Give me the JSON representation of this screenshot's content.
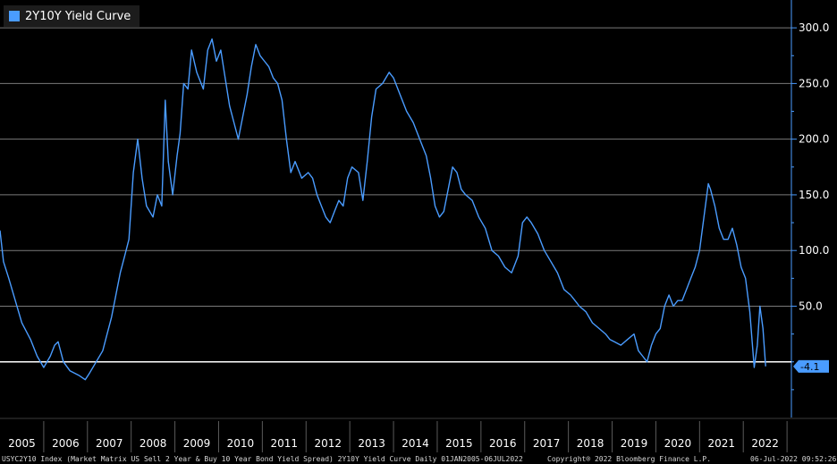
{
  "chart_data": {
    "type": "line",
    "legend": "2Y10Y Yield Curve",
    "series": [
      {
        "name": "2Y10Y Yield Curve",
        "color": "#4a9cff",
        "points": [
          [
            2005.0,
            118
          ],
          [
            2005.08,
            90
          ],
          [
            2005.2,
            75
          ],
          [
            2005.35,
            55
          ],
          [
            2005.5,
            35
          ],
          [
            2005.7,
            20
          ],
          [
            2005.85,
            5
          ],
          [
            2006.0,
            -5
          ],
          [
            2006.15,
            5
          ],
          [
            2006.25,
            15
          ],
          [
            2006.33,
            18
          ],
          [
            2006.45,
            0
          ],
          [
            2006.6,
            -8
          ],
          [
            2006.8,
            -12
          ],
          [
            2006.95,
            -16
          ],
          [
            2007.05,
            -10
          ],
          [
            2007.2,
            0
          ],
          [
            2007.35,
            10
          ],
          [
            2007.45,
            25
          ],
          [
            2007.55,
            40
          ],
          [
            2007.65,
            60
          ],
          [
            2007.75,
            80
          ],
          [
            2007.85,
            95
          ],
          [
            2007.95,
            110
          ],
          [
            2008.05,
            170
          ],
          [
            2008.15,
            200
          ],
          [
            2008.25,
            165
          ],
          [
            2008.35,
            140
          ],
          [
            2008.5,
            130
          ],
          [
            2008.6,
            150
          ],
          [
            2008.7,
            140
          ],
          [
            2008.78,
            235
          ],
          [
            2008.85,
            180
          ],
          [
            2008.95,
            150
          ],
          [
            2009.05,
            185
          ],
          [
            2009.12,
            205
          ],
          [
            2009.2,
            250
          ],
          [
            2009.3,
            245
          ],
          [
            2009.38,
            280
          ],
          [
            2009.5,
            260
          ],
          [
            2009.65,
            245
          ],
          [
            2009.75,
            280
          ],
          [
            2009.85,
            290
          ],
          [
            2009.95,
            270
          ],
          [
            2010.05,
            280
          ],
          [
            2010.15,
            255
          ],
          [
            2010.25,
            230
          ],
          [
            2010.35,
            215
          ],
          [
            2010.45,
            200
          ],
          [
            2010.55,
            220
          ],
          [
            2010.65,
            240
          ],
          [
            2010.75,
            265
          ],
          [
            2010.85,
            285
          ],
          [
            2010.95,
            275
          ],
          [
            2011.05,
            270
          ],
          [
            2011.15,
            265
          ],
          [
            2011.25,
            255
          ],
          [
            2011.35,
            250
          ],
          [
            2011.45,
            235
          ],
          [
            2011.55,
            200
          ],
          [
            2011.65,
            170
          ],
          [
            2011.75,
            180
          ],
          [
            2011.9,
            165
          ],
          [
            2012.05,
            170
          ],
          [
            2012.15,
            165
          ],
          [
            2012.25,
            150
          ],
          [
            2012.35,
            140
          ],
          [
            2012.45,
            130
          ],
          [
            2012.55,
            125
          ],
          [
            2012.65,
            135
          ],
          [
            2012.75,
            145
          ],
          [
            2012.85,
            140
          ],
          [
            2012.95,
            165
          ],
          [
            2013.05,
            175
          ],
          [
            2013.2,
            170
          ],
          [
            2013.3,
            145
          ],
          [
            2013.4,
            180
          ],
          [
            2013.5,
            220
          ],
          [
            2013.6,
            245
          ],
          [
            2013.75,
            250
          ],
          [
            2013.9,
            260
          ],
          [
            2014.0,
            255
          ],
          [
            2014.15,
            240
          ],
          [
            2014.3,
            225
          ],
          [
            2014.45,
            215
          ],
          [
            2014.6,
            200
          ],
          [
            2014.75,
            185
          ],
          [
            2014.85,
            165
          ],
          [
            2014.95,
            140
          ],
          [
            2015.05,
            130
          ],
          [
            2015.15,
            135
          ],
          [
            2015.25,
            155
          ],
          [
            2015.35,
            175
          ],
          [
            2015.45,
            170
          ],
          [
            2015.55,
            155
          ],
          [
            2015.65,
            150
          ],
          [
            2015.8,
            145
          ],
          [
            2015.95,
            130
          ],
          [
            2016.1,
            120
          ],
          [
            2016.25,
            100
          ],
          [
            2016.4,
            95
          ],
          [
            2016.55,
            85
          ],
          [
            2016.7,
            80
          ],
          [
            2016.85,
            95
          ],
          [
            2016.95,
            125
          ],
          [
            2017.05,
            130
          ],
          [
            2017.15,
            125
          ],
          [
            2017.3,
            115
          ],
          [
            2017.45,
            100
          ],
          [
            2017.6,
            90
          ],
          [
            2017.75,
            80
          ],
          [
            2017.9,
            65
          ],
          [
            2018.05,
            60
          ],
          [
            2018.15,
            55
          ],
          [
            2018.25,
            50
          ],
          [
            2018.4,
            45
          ],
          [
            2018.55,
            35
          ],
          [
            2018.7,
            30
          ],
          [
            2018.85,
            25
          ],
          [
            2018.95,
            20
          ],
          [
            2019.05,
            18
          ],
          [
            2019.2,
            15
          ],
          [
            2019.35,
            20
          ],
          [
            2019.5,
            25
          ],
          [
            2019.6,
            10
          ],
          [
            2019.7,
            5
          ],
          [
            2019.8,
            0
          ],
          [
            2019.9,
            15
          ],
          [
            2020.0,
            25
          ],
          [
            2020.1,
            30
          ],
          [
            2020.2,
            50
          ],
          [
            2020.3,
            60
          ],
          [
            2020.4,
            50
          ],
          [
            2020.5,
            55
          ],
          [
            2020.6,
            55
          ],
          [
            2020.7,
            65
          ],
          [
            2020.8,
            75
          ],
          [
            2020.9,
            85
          ],
          [
            2021.0,
            100
          ],
          [
            2021.1,
            130
          ],
          [
            2021.2,
            160
          ],
          [
            2021.25,
            155
          ],
          [
            2021.35,
            140
          ],
          [
            2021.45,
            120
          ],
          [
            2021.55,
            110
          ],
          [
            2021.65,
            110
          ],
          [
            2021.75,
            120
          ],
          [
            2021.85,
            105
          ],
          [
            2021.95,
            85
          ],
          [
            2022.05,
            75
          ],
          [
            2022.15,
            45
          ],
          [
            2022.25,
            -5
          ],
          [
            2022.32,
            15
          ],
          [
            2022.38,
            50
          ],
          [
            2022.45,
            30
          ],
          [
            2022.51,
            -4.1
          ]
        ]
      }
    ],
    "x_tick_labels": [
      "2005",
      "2006",
      "2007",
      "2008",
      "2009",
      "2010",
      "2011",
      "2012",
      "2013",
      "2014",
      "2015",
      "2016",
      "2017",
      "2018",
      "2019",
      "2020",
      "2021",
      "2022"
    ],
    "x_tick_values": [
      2005,
      2006,
      2007,
      2008,
      2009,
      2010,
      2011,
      2012,
      2013,
      2014,
      2015,
      2016,
      2017,
      2018,
      2019,
      2020,
      2021,
      2022
    ],
    "xlim": [
      2005.0,
      2023.1
    ],
    "y_ticks": [
      50,
      100,
      150,
      200,
      250,
      300
    ],
    "y_tick_labels": [
      "50.0",
      "100.0",
      "150.0",
      "200.0",
      "250.0",
      "300.0"
    ],
    "ylim": [
      -50,
      325
    ],
    "grid": true,
    "reference_line": 0,
    "last_value": -4.1,
    "last_value_label": "-4.1",
    "legend_position": "top-left",
    "colors": {
      "background": "#000000",
      "line": "#4a9cff",
      "grid": "#7a7a7a",
      "axis": "#4a9cff",
      "text": "#ffffff"
    }
  },
  "footer": {
    "left": "USYC2Y10 Index (Market Matrix US Sell 2 Year & Buy 10 Year Bond Yield Spread) 2Y10Y Yield Curve  Daily 01JAN2005-06JUL2022",
    "center": "Copyright® 2022 Bloomberg Finance L.P.",
    "right": "06-Jul-2022 09:52:26"
  }
}
